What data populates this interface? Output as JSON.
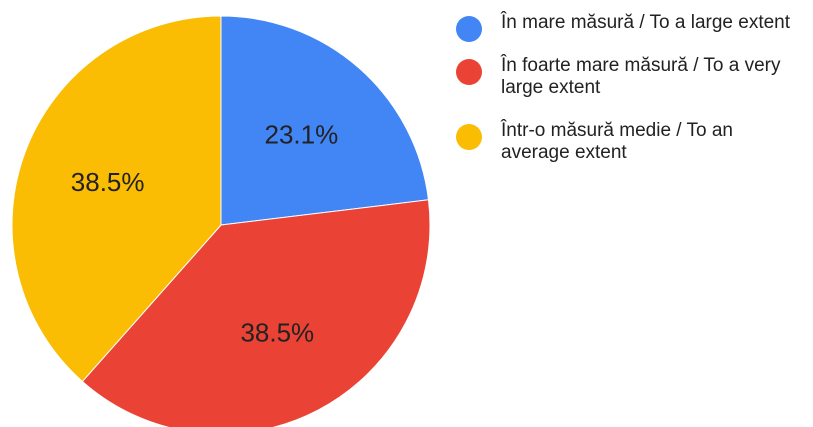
{
  "chart_data": {
    "type": "pie",
    "title": "",
    "slices": [
      {
        "label": "În mare măsură / To a large extent",
        "value": 23.1,
        "display": "23.1%",
        "color": "#4285F4"
      },
      {
        "label": "În foarte mare măsură / To a very large extent",
        "value": 38.5,
        "display": "38.5%",
        "color": "#EA4335"
      },
      {
        "label": "Într-o măsură medie / To an average extent",
        "value": 38.5,
        "display": "38.5%",
        "color": "#FBBC04"
      }
    ],
    "legend_position": "right"
  }
}
